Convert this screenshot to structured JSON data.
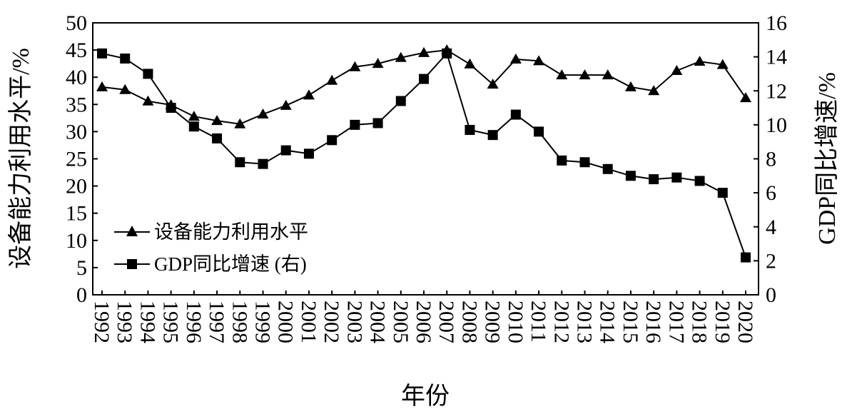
{
  "chart_data": {
    "type": "line",
    "xlabel": "年份",
    "ylabel_left": "设备能力利用水平/%",
    "ylabel_right": "GDP同比增速/%",
    "ylim_left": [
      0,
      50
    ],
    "ylim_right": [
      0,
      16
    ],
    "yticks_left": [
      "0",
      "5",
      "10",
      "15",
      "20",
      "25",
      "30",
      "35",
      "40",
      "45",
      "50"
    ],
    "yticks_right": [
      "0",
      "2",
      "4",
      "6",
      "8",
      "10",
      "12",
      "14",
      "16"
    ],
    "categories": [
      "1992",
      "1993",
      "1994",
      "1995",
      "1996",
      "1997",
      "1998",
      "1999",
      "2000",
      "2001",
      "2002",
      "2003",
      "2004",
      "2005",
      "2006",
      "2007",
      "2008",
      "2009",
      "2010",
      "2011",
      "2012",
      "2013",
      "2014",
      "2015",
      "2016",
      "2017",
      "2018",
      "2019",
      "2020"
    ],
    "legend_placement": "lower-left",
    "series": [
      {
        "name": "设备能力利用水平",
        "axis": "left",
        "marker": "triangle",
        "color": "#000000",
        "values": [
          38.2,
          37.7,
          35.6,
          34.9,
          32.8,
          32.0,
          31.4,
          33.2,
          34.8,
          36.7,
          39.4,
          41.9,
          42.5,
          43.6,
          44.5,
          45.0,
          42.4,
          38.7,
          43.3,
          43.0,
          40.4,
          40.4,
          40.4,
          38.2,
          37.5,
          41.2,
          42.9,
          42.3,
          36.2
        ]
      },
      {
        "name": "GDP同比增速 (右)",
        "axis": "right",
        "marker": "square",
        "color": "#000000",
        "values": [
          14.2,
          13.9,
          13.0,
          11.0,
          9.9,
          9.2,
          7.8,
          7.7,
          8.5,
          8.3,
          9.1,
          10.0,
          10.1,
          11.4,
          12.7,
          14.2,
          9.7,
          9.4,
          10.6,
          9.6,
          7.9,
          7.8,
          7.4,
          7.0,
          6.8,
          6.9,
          6.7,
          6.0,
          2.2
        ]
      }
    ]
  }
}
